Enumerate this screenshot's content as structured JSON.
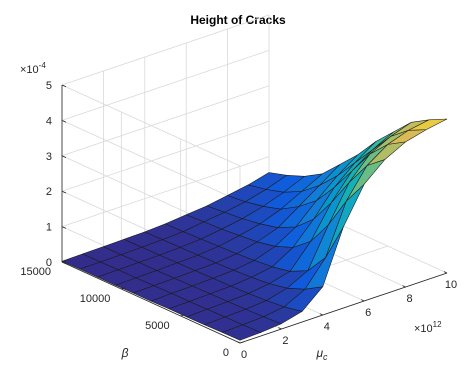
{
  "chart_data": {
    "type": "surface",
    "title": "Height of Cracks",
    "xlabel": "μ",
    "xlabel_sub": "c",
    "ylabel": "β",
    "zlabel": "",
    "x_exponent_label": "×10",
    "x_exponent": "12",
    "z_exponent_label": "×10",
    "z_exponent": "-4",
    "xlim": [
      0,
      10
    ],
    "ylim": [
      0,
      15000
    ],
    "zlim": [
      0,
      5
    ],
    "x_ticks": [
      "0",
      "2",
      "4",
      "6",
      "8",
      "10"
    ],
    "y_ticks": [
      "0",
      "5000",
      "10000",
      "15000"
    ],
    "z_ticks": [
      "0",
      "1",
      "2",
      "3",
      "4",
      "5"
    ],
    "grid": true,
    "colormap": "parula",
    "x": [
      0,
      1,
      2,
      3,
      4,
      5,
      6,
      7,
      8,
      9,
      10
    ],
    "y": [
      0,
      1500,
      3000,
      4500,
      6000,
      7500,
      9000,
      10500,
      12000,
      13500,
      15000
    ],
    "z": [
      [
        0.08,
        0.07,
        0.06,
        0.05,
        0.05,
        0.04,
        0.04,
        0.03,
        0.03,
        0.03,
        0.02
      ],
      [
        0.1,
        0.09,
        0.08,
        0.07,
        0.06,
        0.06,
        0.05,
        0.04,
        0.04,
        0.03,
        0.03
      ],
      [
        0.15,
        0.12,
        0.1,
        0.09,
        0.08,
        0.07,
        0.06,
        0.05,
        0.05,
        0.04,
        0.04
      ],
      [
        0.3,
        0.2,
        0.15,
        0.12,
        0.1,
        0.09,
        0.08,
        0.07,
        0.06,
        0.05,
        0.05
      ],
      [
        0.8,
        0.5,
        0.3,
        0.2,
        0.15,
        0.12,
        0.1,
        0.09,
        0.08,
        0.07,
        0.06
      ],
      [
        2.3,
        1.2,
        0.6,
        0.35,
        0.25,
        0.2,
        0.16,
        0.14,
        0.12,
        0.1,
        0.09
      ],
      [
        3.3,
        2.6,
        1.7,
        1.0,
        0.6,
        0.4,
        0.3,
        0.25,
        0.2,
        0.18,
        0.15
      ],
      [
        3.8,
        3.4,
        2.7,
        1.9,
        1.2,
        0.75,
        0.5,
        0.38,
        0.3,
        0.25,
        0.2
      ],
      [
        4.1,
        3.8,
        3.3,
        2.6,
        1.9,
        1.3,
        0.9,
        0.6,
        0.45,
        0.35,
        0.3
      ],
      [
        4.25,
        4.0,
        3.6,
        3.0,
        2.4,
        1.8,
        1.3,
        0.9,
        0.65,
        0.5,
        0.4
      ],
      [
        4.35,
        4.1,
        3.8,
        3.3,
        2.8,
        2.2,
        1.7,
        1.2,
        0.9,
        0.7,
        0.55
      ]
    ]
  }
}
